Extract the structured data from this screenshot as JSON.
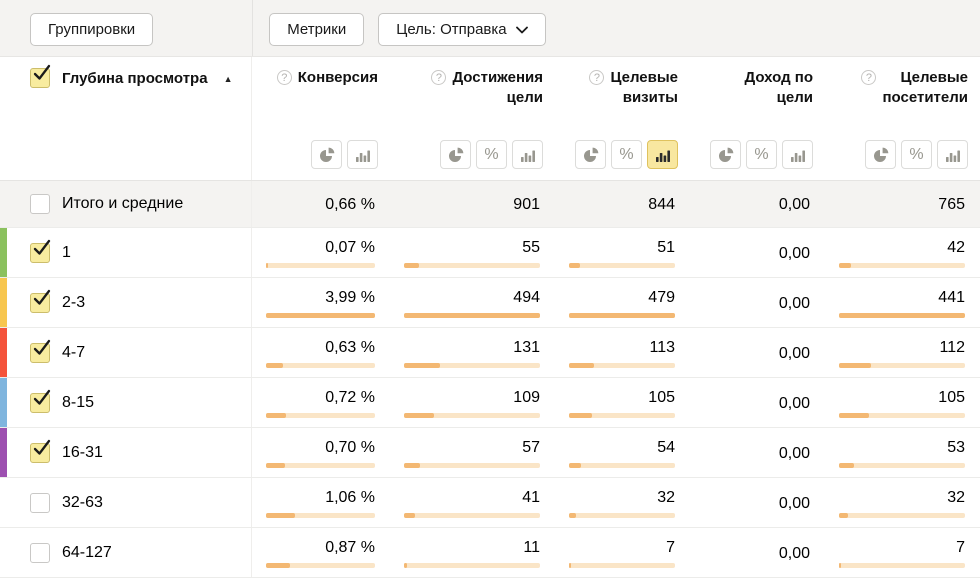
{
  "toolbar": {
    "groupings": "Группировки",
    "metrics": "Метрики",
    "goal": "Цель: Отправка"
  },
  "header": {
    "row_dimension": "Глубина просмотра",
    "sort_icon": "▲",
    "columns": [
      {
        "id": "conversion",
        "label": "Конверсия",
        "help": true,
        "icons": [
          "pie",
          "bar"
        ],
        "active": ""
      },
      {
        "id": "goal-reaches",
        "label": "Достижения\nцели",
        "help": true,
        "icons": [
          "pie",
          "percent",
          "bar"
        ],
        "active": ""
      },
      {
        "id": "goal-visits",
        "label": "Целевые\nвизиты",
        "help": true,
        "icons": [
          "pie",
          "percent",
          "bar"
        ],
        "active": "bar"
      },
      {
        "id": "goal-revenue",
        "label": "Доход по\nцели",
        "help": false,
        "icons": [
          "pie",
          "percent",
          "bar"
        ],
        "active": ""
      },
      {
        "id": "goal-users",
        "label": "Целевые\nпосетители",
        "help": true,
        "icons": [
          "pie",
          "percent",
          "bar"
        ],
        "active": ""
      }
    ]
  },
  "totals": {
    "label": "Итого и средние",
    "checked": false,
    "values": [
      "0,66 %",
      "901",
      "844",
      "0,00",
      "765"
    ]
  },
  "rows": [
    {
      "label": "1",
      "checked": true,
      "marker": "#8bc15e",
      "cells": [
        [
          "0,07 %",
          1.8
        ],
        [
          "55",
          11.1
        ],
        [
          "51",
          10.6
        ],
        [
          "0,00",
          null
        ],
        [
          "42",
          9.5
        ]
      ]
    },
    {
      "label": "2-3",
      "checked": true,
      "marker": "#f7c64f",
      "cells": [
        [
          "3,99 %",
          100
        ],
        [
          "494",
          100
        ],
        [
          "479",
          100
        ],
        [
          "0,00",
          null
        ],
        [
          "441",
          100
        ]
      ]
    },
    {
      "label": "4-7",
      "checked": true,
      "marker": "#f4533b",
      "cells": [
        [
          "0,63 %",
          15.8
        ],
        [
          "131",
          26.5
        ],
        [
          "113",
          23.6
        ],
        [
          "0,00",
          null
        ],
        [
          "112",
          25.4
        ]
      ]
    },
    {
      "label": "8-15",
      "checked": true,
      "marker": "#7fb5de",
      "cells": [
        [
          "0,72 %",
          18.0
        ],
        [
          "109",
          22.1
        ],
        [
          "105",
          21.9
        ],
        [
          "0,00",
          null
        ],
        [
          "105",
          23.8
        ]
      ]
    },
    {
      "label": "16-31",
      "checked": true,
      "marker": "#9d50b0",
      "cells": [
        [
          "0,70 %",
          17.5
        ],
        [
          "57",
          11.5
        ],
        [
          "54",
          11.3
        ],
        [
          "0,00",
          null
        ],
        [
          "53",
          12.0
        ]
      ]
    },
    {
      "label": "32-63",
      "checked": false,
      "marker": null,
      "cells": [
        [
          "1,06 %",
          26.6
        ],
        [
          "41",
          8.3
        ],
        [
          "32",
          6.7
        ],
        [
          "0,00",
          null
        ],
        [
          "32",
          7.3
        ]
      ]
    },
    {
      "label": "64-127",
      "checked": false,
      "marker": null,
      "cells": [
        [
          "0,87 %",
          21.8
        ],
        [
          "11",
          2.2
        ],
        [
          "7",
          1.5
        ],
        [
          "0,00",
          null
        ],
        [
          "7",
          1.6
        ]
      ]
    }
  ],
  "colors": {
    "bar_fill": "#f3b873",
    "bar_track": "#fae5c7",
    "accent_selected": "#f8e7a0",
    "checkbox_checked": "#f8ec9f",
    "marker_green": "#8bc15e",
    "marker_yellow": "#f7c64f",
    "marker_red": "#f4533b",
    "marker_blue": "#7fb5de",
    "marker_purple": "#9d50b0"
  }
}
